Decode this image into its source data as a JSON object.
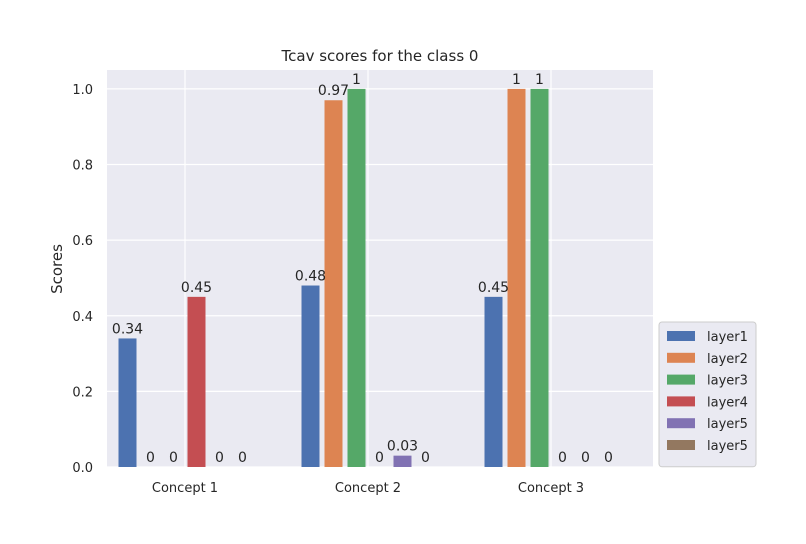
{
  "chart_data": {
    "type": "bar",
    "title": "Tcav scores for the class 0",
    "xlabel": "",
    "ylabel": "Scores",
    "categories": [
      "Concept 1",
      "Concept 2",
      "Concept 3"
    ],
    "ylim": [
      0,
      1.05
    ],
    "yticks": [
      0.0,
      0.2,
      0.4,
      0.6,
      0.8,
      1.0
    ],
    "ytick_labels": [
      "0.0",
      "0.2",
      "0.4",
      "0.6",
      "0.8",
      "1.0"
    ],
    "grid": true,
    "legend_position": "right",
    "series": [
      {
        "name": "layer1",
        "color": "#4c72b0",
        "values": [
          0.34,
          0.48,
          0.45
        ],
        "labels": [
          "0.34",
          "0.48",
          "0.45"
        ]
      },
      {
        "name": "layer2",
        "color": "#dd8452",
        "values": [
          0,
          0.97,
          1
        ],
        "labels": [
          "0",
          "0.97",
          "1"
        ]
      },
      {
        "name": "layer3",
        "color": "#55a868",
        "values": [
          0,
          1,
          1
        ],
        "labels": [
          "0",
          "1",
          "1"
        ]
      },
      {
        "name": "layer4",
        "color": "#c44e52",
        "values": [
          0.45,
          0,
          0
        ],
        "labels": [
          "0.45",
          "0",
          "0"
        ]
      },
      {
        "name": "layer5",
        "color": "#8172b3",
        "values": [
          0,
          0.03,
          0
        ],
        "labels": [
          "0",
          "0.03",
          "0"
        ]
      },
      {
        "name": "layer5",
        "color": "#937860",
        "values": [
          0,
          0,
          0
        ],
        "labels": [
          "0",
          "0",
          "0"
        ]
      }
    ]
  }
}
